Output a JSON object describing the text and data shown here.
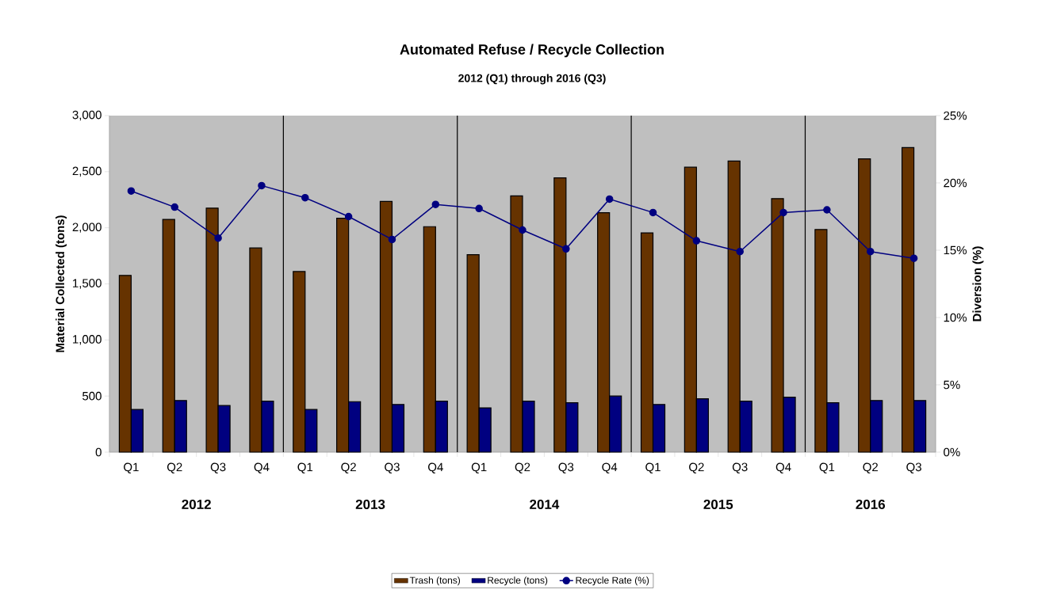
{
  "chart_data": {
    "type": "bar",
    "title": "Automated Refuse / Recycle Collection",
    "subtitle": "2012  (Q1)  through 2016  (Q3)",
    "categories": [
      "Q1",
      "Q2",
      "Q3",
      "Q4",
      "Q1",
      "Q2",
      "Q3",
      "Q4",
      "Q1",
      "Q2",
      "Q3",
      "Q4",
      "Q1",
      "Q2",
      "Q3",
      "Q4",
      "Q1",
      "Q2",
      "Q3"
    ],
    "series": [
      {
        "name": "Trash (tons)",
        "color": "#663300",
        "values": [
          1575,
          2075,
          2175,
          1820,
          1610,
          2085,
          2235,
          2010,
          1760,
          2285,
          2445,
          2135,
          1955,
          2540,
          2595,
          2260,
          1985,
          2615,
          2715
        ]
      },
      {
        "name": "Recycle (tons)",
        "color": "#000080",
        "values": [
          380,
          460,
          415,
          455,
          380,
          450,
          425,
          455,
          395,
          455,
          440,
          500,
          425,
          475,
          455,
          490,
          440,
          460,
          460
        ]
      },
      {
        "name": "Recycle Rate (%)",
        "type": "line",
        "axis": "y2",
        "color": "#000080",
        "marker": "circle",
        "values": [
          19.4,
          18.2,
          15.9,
          19.8,
          18.9,
          17.5,
          15.8,
          18.4,
          18.1,
          16.5,
          15.1,
          18.8,
          17.8,
          15.7,
          14.9,
          17.8,
          18.0,
          14.9,
          14.4
        ]
      }
    ],
    "ylabel": "Material Collected (tons)",
    "y2label": "Diversion (%)",
    "ylim": [
      0,
      3000
    ],
    "yticks": [
      0,
      500,
      {
        "value": 1000,
        "label": "1,000"
      },
      {
        "value": 1500,
        "label": "1,500"
      },
      {
        "value": 2000,
        "label": "2,000"
      },
      {
        "value": 2500,
        "label": "2,500"
      },
      {
        "value": 3000,
        "label": "3,000"
      }
    ],
    "y2lim": [
      0,
      25
    ],
    "y2ticks": [
      {
        "value": 0,
        "label": "0%"
      },
      {
        "value": 5,
        "label": "5%"
      },
      {
        "value": 10,
        "label": "10%"
      },
      {
        "value": 15,
        "label": "15%"
      },
      {
        "value": 20,
        "label": "20%"
      },
      {
        "value": 25,
        "label": "25%"
      }
    ],
    "annotations": [
      "2012",
      "2013",
      "2014",
      "2015",
      "2016"
    ],
    "legend": "bottom",
    "grid": false
  }
}
